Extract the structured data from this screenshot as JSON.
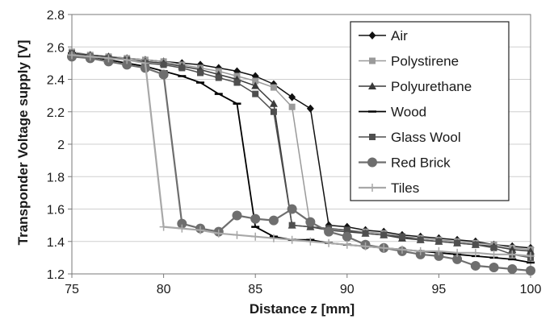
{
  "chart_data": {
    "type": "line",
    "title": "",
    "xlabel": "Distance z [mm]",
    "ylabel": "Transponder Voltage supply [V]",
    "xlim": [
      75,
      100
    ],
    "ylim": [
      1.2,
      2.8
    ],
    "xticks": [
      "75",
      "80",
      "85",
      "90",
      "95",
      "100"
    ],
    "yticks": [
      "1.2",
      "1.4",
      "1.6",
      "1.8",
      "2",
      "2.2",
      "2.4",
      "2.6",
      "2.8"
    ],
    "grid": "horizontal",
    "legend_position": "right",
    "series": [
      {
        "name": "Air",
        "color": "#111111",
        "marker": "diamond",
        "line_width": 1.5,
        "x": [
          75,
          76,
          77,
          78,
          79,
          80,
          81,
          82,
          83,
          84,
          85,
          86,
          87,
          88,
          89,
          90,
          91,
          92,
          93,
          94,
          95,
          96,
          97,
          98,
          99,
          100
        ],
        "y": [
          2.56,
          2.55,
          2.54,
          2.53,
          2.52,
          2.51,
          2.5,
          2.49,
          2.47,
          2.45,
          2.42,
          2.37,
          2.29,
          2.22,
          1.5,
          1.49,
          1.47,
          1.46,
          1.44,
          1.43,
          1.42,
          1.41,
          1.4,
          1.38,
          1.37,
          1.36
        ]
      },
      {
        "name": "Polystirene",
        "color": "#9a9a9a",
        "marker": "square",
        "line_width": 1.5,
        "x": [
          75,
          76,
          77,
          78,
          79,
          80,
          81,
          82,
          83,
          84,
          85,
          86,
          87,
          88,
          89,
          90,
          91,
          92,
          93,
          94,
          95,
          96,
          97,
          98,
          99,
          100
        ],
        "y": [
          2.57,
          2.55,
          2.54,
          2.53,
          2.52,
          2.51,
          2.49,
          2.47,
          2.45,
          2.42,
          2.39,
          2.35,
          2.23,
          1.49,
          1.48,
          1.47,
          1.46,
          1.45,
          1.43,
          1.42,
          1.41,
          1.4,
          1.39,
          1.38,
          1.36,
          1.35
        ]
      },
      {
        "name": "Polyurethane",
        "color": "#3a3a3a",
        "marker": "triangle",
        "line_width": 1.5,
        "x": [
          75,
          76,
          77,
          78,
          79,
          80,
          81,
          82,
          83,
          84,
          85,
          86,
          87,
          88,
          89,
          90,
          91,
          92,
          93,
          94,
          95,
          96,
          97,
          98,
          99,
          100
        ],
        "y": [
          2.56,
          2.55,
          2.54,
          2.52,
          2.51,
          2.5,
          2.48,
          2.46,
          2.43,
          2.4,
          2.36,
          2.25,
          1.5,
          1.49,
          1.47,
          1.46,
          1.45,
          1.44,
          1.42,
          1.41,
          1.4,
          1.39,
          1.38,
          1.37,
          1.35,
          1.34
        ]
      },
      {
        "name": "Wood",
        "color": "#000000",
        "marker": "dash",
        "line_width": 1.8,
        "x": [
          75,
          76,
          77,
          78,
          79,
          80,
          81,
          82,
          83,
          84,
          85,
          86,
          87,
          88,
          89,
          90,
          91,
          92,
          93,
          94,
          95,
          96,
          97,
          98,
          99,
          100
        ],
        "y": [
          2.56,
          2.54,
          2.52,
          2.5,
          2.48,
          2.45,
          2.42,
          2.38,
          2.31,
          2.25,
          1.49,
          1.43,
          1.41,
          1.41,
          1.39,
          1.38,
          1.37,
          1.36,
          1.35,
          1.34,
          1.33,
          1.32,
          1.31,
          1.3,
          1.29,
          1.27
        ]
      },
      {
        "name": "Glass Wool",
        "color": "#4f4f4f",
        "marker": "square",
        "line_width": 1.5,
        "x": [
          75,
          76,
          77,
          78,
          79,
          80,
          81,
          82,
          83,
          84,
          85,
          86,
          87,
          88,
          89,
          90,
          91,
          92,
          93,
          94,
          95,
          96,
          97,
          98,
          99,
          100
        ],
        "y": [
          2.56,
          2.54,
          2.53,
          2.52,
          2.5,
          2.49,
          2.47,
          2.44,
          2.41,
          2.38,
          2.31,
          2.2,
          1.5,
          1.49,
          1.48,
          1.47,
          1.45,
          1.44,
          1.43,
          1.41,
          1.4,
          1.39,
          1.38,
          1.36,
          1.32,
          1.3
        ]
      },
      {
        "name": "Red Brick",
        "color": "#6e6e6e",
        "marker": "circle",
        "line_width": 2.2,
        "x": [
          75,
          76,
          77,
          78,
          79,
          80,
          81,
          82,
          83,
          84,
          85,
          86,
          87,
          88,
          89,
          90,
          91,
          92,
          93,
          94,
          95,
          96,
          97,
          98,
          99,
          100
        ],
        "y": [
          2.54,
          2.53,
          2.51,
          2.49,
          2.47,
          2.43,
          1.51,
          1.48,
          1.46,
          1.56,
          1.54,
          1.53,
          1.6,
          1.52,
          1.46,
          1.43,
          1.38,
          1.36,
          1.34,
          1.32,
          1.31,
          1.29,
          1.25,
          1.24,
          1.23,
          1.22
        ]
      },
      {
        "name": "Tiles",
        "color": "#a8a8a8",
        "marker": "plus",
        "line_width": 2.2,
        "x": [
          75,
          76,
          77,
          78,
          79,
          80,
          81,
          82,
          83,
          84,
          85,
          86,
          87,
          88,
          89,
          90,
          91,
          92,
          93,
          94,
          95,
          96,
          97,
          98,
          99,
          100
        ],
        "y": [
          2.55,
          2.54,
          2.53,
          2.52,
          2.5,
          1.49,
          1.48,
          1.47,
          1.45,
          1.44,
          1.43,
          1.42,
          1.41,
          1.4,
          1.39,
          1.38,
          1.37,
          1.36,
          1.35,
          1.34,
          1.34,
          1.33,
          1.33,
          1.32,
          1.32,
          1.31
        ]
      }
    ]
  }
}
